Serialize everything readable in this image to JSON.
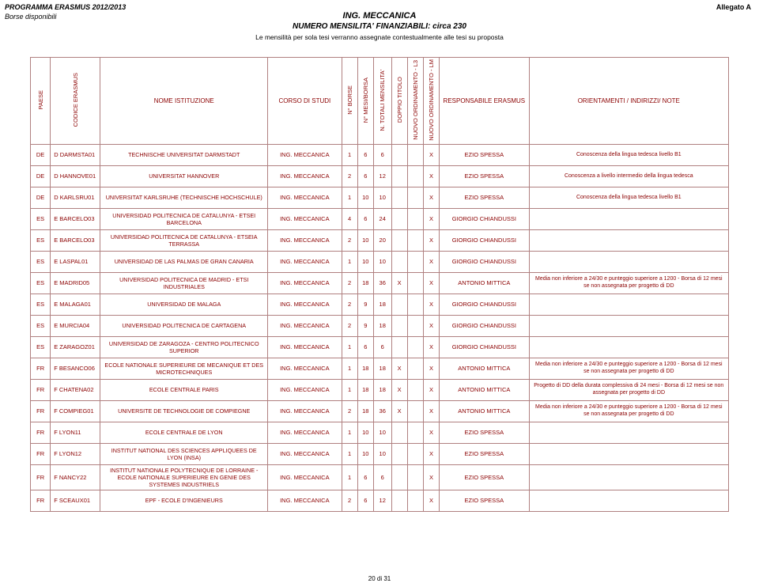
{
  "header": {
    "program": "PROGRAMMA ERASMUS 2012/2013",
    "subprogram": "Borse disponibili",
    "allegato": "Allegato A",
    "title1": "ING. MECCANICA",
    "title2": "NUMERO MENSILITA' FINANZIABILI: circa 230",
    "subtitle": "Le mensilità per sola tesi verranno assegnate contestualmente alle tesi su proposta"
  },
  "columns": {
    "paese": "PAESE",
    "codice": "CODICE ERASMUS",
    "nome": "NOME ISTITUZIONE",
    "corso": "CORSO DI STUDI",
    "nborse": "N° BORSE",
    "nmesi": "N° MESI/BORSA",
    "ntot": "N. TOTALI MENSILITA'",
    "doppio": "DOPPIO TITOLO",
    "l3": "NUOVO ORDINAMENTO - L3",
    "lm": "NUOVO ORDINAMENTO - LM",
    "resp": "RESPONSABILE ERASMUS",
    "note": "ORIENTAMENTI / INDIRIZZI/ NOTE"
  },
  "rows": [
    {
      "p": "DE",
      "c": "D DARMSTA01",
      "n": "TECHNISCHE UNIVERSITAT DARMSTADT",
      "cs": "ING. MECCANICA",
      "b": "1",
      "m": "6",
      "t": "6",
      "dt": "",
      "l3": "",
      "lm": "X",
      "r": "EZIO SPESSA",
      "note": "Conoscenza della lingua tedesca livello B1"
    },
    {
      "p": "DE",
      "c": "D HANNOVE01",
      "n": "UNIVERSITAT HANNOVER",
      "cs": "ING. MECCANICA",
      "b": "2",
      "m": "6",
      "t": "12",
      "dt": "",
      "l3": "",
      "lm": "X",
      "r": "EZIO SPESSA",
      "note": "Conoscenza a livello intermedio della lingua tedesca"
    },
    {
      "p": "DE",
      "c": "D KARLSRU01",
      "n": "UNIVERSITAT KARLSRUHE (TECHNISCHE HOCHSCHULE)",
      "cs": "ING. MECCANICA",
      "b": "1",
      "m": "10",
      "t": "10",
      "dt": "",
      "l3": "",
      "lm": "X",
      "r": "EZIO SPESSA",
      "note": "Conoscenza della lingua tedesca livello B1"
    },
    {
      "p": "ES",
      "c": "E BARCELO03",
      "n": "UNIVERSIDAD POLITECNICA DE CATALUNYA - ETSEI BARCELONA",
      "cs": "ING. MECCANICA",
      "b": "4",
      "m": "6",
      "t": "24",
      "dt": "",
      "l3": "",
      "lm": "X",
      "r": "GIORGIO CHIANDUSSI",
      "note": ""
    },
    {
      "p": "ES",
      "c": "E BARCELO03",
      "n": "UNIVERSIDAD POLITECNICA DE CATALUNYA - ETSEIA TERRASSA",
      "cs": "ING. MECCANICA",
      "b": "2",
      "m": "10",
      "t": "20",
      "dt": "",
      "l3": "",
      "lm": "X",
      "r": "GIORGIO CHIANDUSSI",
      "note": ""
    },
    {
      "p": "ES",
      "c": "E LASPAL01",
      "n": "UNIVERSIDAD DE LAS PALMAS DE GRAN CANARIA",
      "cs": "ING. MECCANICA",
      "b": "1",
      "m": "10",
      "t": "10",
      "dt": "",
      "l3": "",
      "lm": "X",
      "r": "GIORGIO CHIANDUSSI",
      "note": ""
    },
    {
      "p": "ES",
      "c": "E MADRID05",
      "n": "UNIVERSIDAD POLITECNICA DE MADRID - ETSI INDUSTRIALES",
      "cs": "ING. MECCANICA",
      "b": "2",
      "m": "18",
      "t": "36",
      "dt": "X",
      "l3": "",
      "lm": "X",
      "r": "ANTONIO MITTICA",
      "note": "Media non inferiore a 24/30 e punteggio superiore a 1200 - Borsa di 12 mesi se non assegnata per progetto di DD"
    },
    {
      "p": "ES",
      "c": "E MALAGA01",
      "n": "UNIVERSIDAD DE MALAGA",
      "cs": "ING. MECCANICA",
      "b": "2",
      "m": "9",
      "t": "18",
      "dt": "",
      "l3": "",
      "lm": "X",
      "r": "GIORGIO CHIANDUSSI",
      "note": ""
    },
    {
      "p": "ES",
      "c": "E MURCIA04",
      "n": "UNIVERSIDAD POLITECNICA DE CARTAGENA",
      "cs": "ING. MECCANICA",
      "b": "2",
      "m": "9",
      "t": "18",
      "dt": "",
      "l3": "",
      "lm": "X",
      "r": "GIORGIO CHIANDUSSI",
      "note": ""
    },
    {
      "p": "ES",
      "c": "E ZARAGOZ01",
      "n": "UNIVERSIDAD DE ZARAGOZA - CENTRO POLITECNICO SUPERIOR",
      "cs": "ING. MECCANICA",
      "b": "1",
      "m": "6",
      "t": "6",
      "dt": "",
      "l3": "",
      "lm": "X",
      "r": "GIORGIO CHIANDUSSI",
      "note": ""
    },
    {
      "p": "FR",
      "c": "F BESANCO06",
      "n": "ECOLE NATIONALE SUPERIEURE DE MECANIQUE ET DES MICROTECHNIQUES",
      "cs": "ING. MECCANICA",
      "b": "1",
      "m": "18",
      "t": "18",
      "dt": "X",
      "l3": "",
      "lm": "X",
      "r": "ANTONIO MITTICA",
      "note": "Media non inferiore a 24/30 e punteggio superiore a 1200 - Borsa di 12 mesi se non assegnata per progetto di DD"
    },
    {
      "p": "FR",
      "c": "F CHATENA02",
      "n": "ECOLE CENTRALE PARIS",
      "cs": "ING. MECCANICA",
      "b": "1",
      "m": "18",
      "t": "18",
      "dt": "X",
      "l3": "",
      "lm": "X",
      "r": "ANTONIO MITTICA",
      "note": "Progetto di DD della durata complessiva di 24 mesi - Borsa di 12 mesi se non assegnata per progetto di DD"
    },
    {
      "p": "FR",
      "c": "F COMPIEG01",
      "n": "UNIVERSITE DE TECHNOLOGIE DE COMPIEGNE",
      "cs": "ING. MECCANICA",
      "b": "2",
      "m": "18",
      "t": "36",
      "dt": "X",
      "l3": "",
      "lm": "X",
      "r": "ANTONIO MITTICA",
      "note": "Media non inferiore a 24/30 e punteggio superiore a 1200 - Borsa di 12 mesi se non assegnata per progetto di DD"
    },
    {
      "p": "FR",
      "c": "F LYON11",
      "n": "ECOLE CENTRALE DE LYON",
      "cs": "ING. MECCANICA",
      "b": "1",
      "m": "10",
      "t": "10",
      "dt": "",
      "l3": "",
      "lm": "X",
      "r": "EZIO SPESSA",
      "note": ""
    },
    {
      "p": "FR",
      "c": "F LYON12",
      "n": "INSTITUT NATIONAL DES SCIENCES APPLIQUEES DE LYON (INSA)",
      "cs": "ING. MECCANICA",
      "b": "1",
      "m": "10",
      "t": "10",
      "dt": "",
      "l3": "",
      "lm": "X",
      "r": "EZIO SPESSA",
      "note": ""
    },
    {
      "p": "FR",
      "c": "F NANCY22",
      "n": "INSTITUT NATIONALE POLYTECNIQUE DE LORRAINE - ECOLE NATIONALE SUPERIEURE EN GENIE DES SYSTEMES INDUSTRIELS",
      "cs": "ING. MECCANICA",
      "b": "1",
      "m": "6",
      "t": "6",
      "dt": "",
      "l3": "",
      "lm": "X",
      "r": "EZIO SPESSA",
      "note": ""
    },
    {
      "p": "FR",
      "c": "F SCEAUX01",
      "n": "EPF - ECOLE D'INGENIEURS",
      "cs": "ING. MECCANICA",
      "b": "2",
      "m": "6",
      "t": "12",
      "dt": "",
      "l3": "",
      "lm": "X",
      "r": "EZIO SPESSA",
      "note": ""
    }
  ],
  "footer": "20 di 31"
}
